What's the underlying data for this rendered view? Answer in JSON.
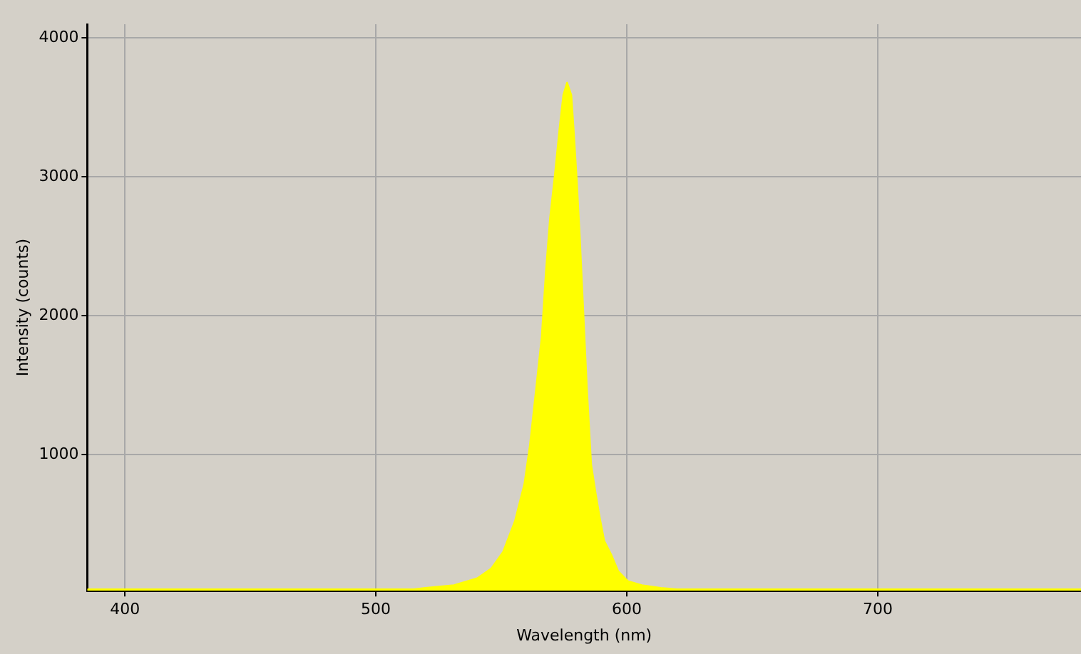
{
  "chart_data": {
    "type": "area",
    "xlabel": "Wavelength (nm)",
    "ylabel": "Intensity (counts)",
    "xlim": [
      385,
      781
    ],
    "ylim": [
      20,
      4100
    ],
    "xticks": [
      400,
      500,
      600,
      700
    ],
    "yticks": [
      1000,
      2000,
      3000,
      4000
    ],
    "grid": true,
    "legend": false,
    "series": [
      {
        "color": "#ffff00",
        "x": [
          385,
          515,
          519.8,
          531.1,
          540.4,
          546,
          550.7,
          555.4,
          559.2,
          561.4,
          563.9,
          566.1,
          567.8,
          569.4,
          571.3,
          573.2,
          574.7,
          576.2,
          577.9,
          578.8,
          580.1,
          581.3,
          582.7,
          584.1,
          585.8,
          587.6,
          589.2,
          591,
          593.8,
          596.6,
          600.4,
          606,
          613.5,
          620,
          781
        ],
        "values": [
          30,
          30,
          40,
          60,
          110,
          180,
          300,
          520,
          790,
          1070,
          1480,
          1850,
          2330,
          2700,
          3010,
          3350,
          3590,
          3680,
          3590,
          3350,
          2970,
          2560,
          2020,
          1480,
          930,
          720,
          550,
          380,
          280,
          160,
          90,
          60,
          40,
          30,
          30
        ]
      }
    ]
  }
}
